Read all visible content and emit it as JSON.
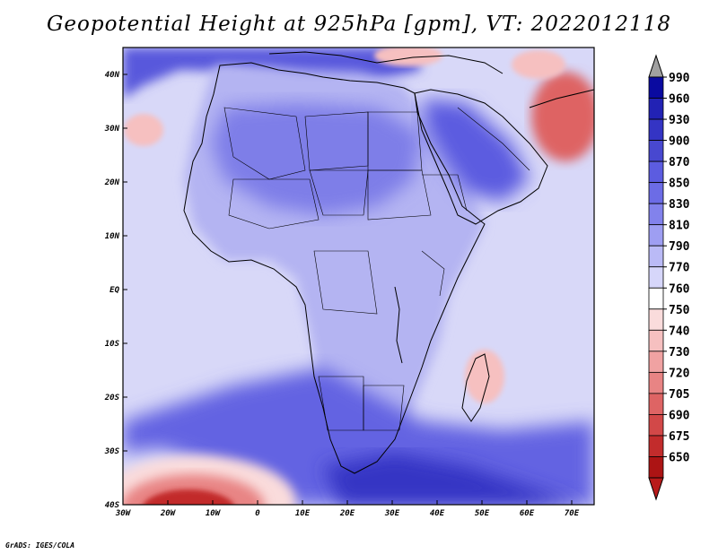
{
  "title": "Geopotential Height at 925hPa [gpm], VT: 2022012118",
  "credit": "GrADS: IGES/COLA",
  "axes": {
    "lon_labels": [
      "30W",
      "20W",
      "10W",
      "0",
      "10E",
      "20E",
      "30E",
      "40E",
      "50E",
      "60E",
      "70E"
    ],
    "lat_labels": [
      "40N",
      "30N",
      "20N",
      "10N",
      "EQ",
      "10S",
      "20S",
      "30S",
      "40S"
    ]
  },
  "colorbar": {
    "levels": [
      "990",
      "960",
      "930",
      "900",
      "870",
      "850",
      "830",
      "810",
      "790",
      "770",
      "760",
      "750",
      "740",
      "730",
      "720",
      "705",
      "690",
      "675",
      "650"
    ],
    "colors": [
      "#0a0aa0",
      "#2222b4",
      "#3434c4",
      "#4848d0",
      "#5c5ce0",
      "#6c6ce6",
      "#8282ec",
      "#9e9ef2",
      "#babaf6",
      "#d6d6fa",
      "#ffffff",
      "#fadcdc",
      "#f6c0c0",
      "#f0a2a2",
      "#e88484",
      "#de6464",
      "#d24848",
      "#c22c2c",
      "#ac1414"
    ],
    "top_arrow_color": "#a0a0a0",
    "bottom_arrow_color": "#b81a1a"
  },
  "map_colors": {
    "background": "#d8d8f8",
    "land": "#b4b4f2",
    "sahara": "#7e7ee8",
    "arabia": "#5c5ce0",
    "south_ocean": "#6464e2",
    "south_ocean_deep": "#3434c4",
    "north_atlantic": "#5858dc",
    "low_center": "#c22c2c",
    "low_mid": "#e88484",
    "low_edge": "#fadcdc",
    "high_asia": "#de6464",
    "warm_spots": "#f6c0c0"
  },
  "chart_data": {
    "type": "heatmap",
    "title": "Geopotential Height at 925hPa [gpm], VT: 2022012118",
    "variable": "Geopotential Height",
    "level": "925hPa",
    "units": "gpm",
    "valid_time": "2022012118",
    "lon_range": [
      -30,
      75
    ],
    "lat_range": [
      -40,
      45
    ],
    "contour_levels": [
      650,
      675,
      690,
      705,
      720,
      730,
      740,
      750,
      760,
      770,
      790,
      810,
      830,
      850,
      870,
      900,
      930,
      960,
      990
    ]
  }
}
